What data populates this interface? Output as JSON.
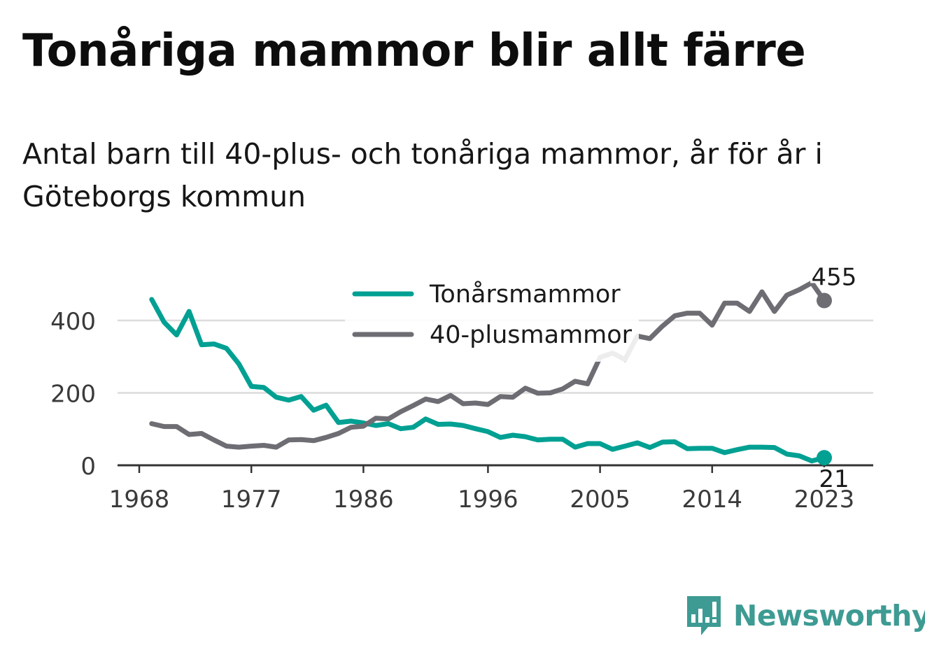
{
  "header": {
    "title": "Tonåriga mammor blir allt färre",
    "subtitle": "Antal barn till 40-plus- och tonåriga mammor, år för år i Göteborgs kommun"
  },
  "brand": {
    "name": "Newsworthy",
    "color": "#3d9b93"
  },
  "chart_data": {
    "type": "line",
    "x": [
      1969,
      1970,
      1971,
      1972,
      1973,
      1974,
      1975,
      1976,
      1977,
      1978,
      1979,
      1980,
      1981,
      1982,
      1983,
      1984,
      1985,
      1986,
      1987,
      1988,
      1989,
      1990,
      1991,
      1992,
      1993,
      1994,
      1995,
      1996,
      1997,
      1998,
      1999,
      2000,
      2001,
      2002,
      2003,
      2004,
      2005,
      2006,
      2007,
      2008,
      2009,
      2010,
      2011,
      2012,
      2013,
      2014,
      2015,
      2016,
      2017,
      2018,
      2019,
      2020,
      2021,
      2022,
      2023
    ],
    "series": [
      {
        "name": "Tonårsmammor",
        "color": "#00a093",
        "values": [
          458,
          395,
          360,
          425,
          333,
          335,
          323,
          280,
          218,
          215,
          188,
          180,
          190,
          152,
          166,
          118,
          122,
          117,
          110,
          115,
          101,
          105,
          128,
          113,
          114,
          110,
          101,
          93,
          77,
          83,
          79,
          70,
          72,
          72,
          50,
          60,
          60,
          44,
          53,
          62,
          49,
          64,
          65,
          46,
          47,
          47,
          35,
          43,
          50,
          50,
          49,
          31,
          26,
          12,
          21
        ],
        "end_label": "21"
      },
      {
        "name": "40-plusmammor",
        "color": "#6e6d73",
        "values": [
          115,
          107,
          107,
          85,
          88,
          70,
          53,
          50,
          53,
          55,
          50,
          70,
          71,
          68,
          77,
          88,
          105,
          108,
          130,
          128,
          148,
          165,
          183,
          176,
          193,
          170,
          172,
          168,
          190,
          188,
          213,
          199,
          200,
          211,
          232,
          225,
          298,
          310,
          292,
          357,
          350,
          384,
          413,
          420,
          420,
          387,
          448,
          448,
          425,
          479,
          425,
          470,
          485,
          504,
          455
        ],
        "end_label": "455"
      }
    ],
    "x_ticks": [
      "1968",
      "1977",
      "1986",
      "1996",
      "2005",
      "2014",
      "2023"
    ],
    "y_ticks": [
      "0",
      "200",
      "400"
    ],
    "ylim": [
      0,
      540
    ],
    "xlabel": "",
    "ylabel": "",
    "grid": true,
    "legend_position": "top-center"
  }
}
